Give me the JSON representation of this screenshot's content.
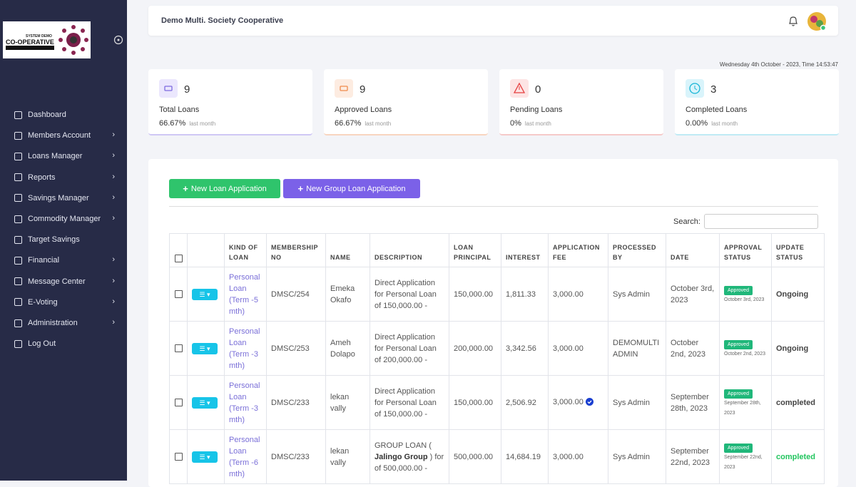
{
  "sidebar": {
    "logo": {
      "line1": "SYSTEM DEMO",
      "line2": "CO-OPERATIVE"
    },
    "menu": [
      {
        "label": "Dashboard",
        "submenu": false
      },
      {
        "label": "Members Account",
        "submenu": true
      },
      {
        "label": "Loans Manager",
        "submenu": true
      },
      {
        "label": "Reports",
        "submenu": true
      },
      {
        "label": "Savings Manager",
        "submenu": true
      },
      {
        "label": "Commodity Manager",
        "submenu": true
      },
      {
        "label": "Target Savings",
        "submenu": false
      },
      {
        "label": "Financial",
        "submenu": true
      },
      {
        "label": "Message Center",
        "submenu": true
      },
      {
        "label": "E-Voting",
        "submenu": true
      },
      {
        "label": "Administration",
        "submenu": true
      },
      {
        "label": "Log Out",
        "submenu": false
      }
    ]
  },
  "header": {
    "title": "Demo Multi. Society Cooperative"
  },
  "datetime": "Wednesday 4th October - 2023,  Time  14:53:47",
  "cards": [
    {
      "value": "9",
      "label": "Total Loans",
      "percent": "66.67%",
      "period": "last month"
    },
    {
      "value": "9",
      "label": "Approved Loans",
      "percent": "66.67%",
      "period": "last month"
    },
    {
      "value": "0",
      "label": "Pending Loans",
      "percent": "0%",
      "period": "last month"
    },
    {
      "value": "3",
      "label": "Completed Loans",
      "percent": "0.00%",
      "period": "last month"
    }
  ],
  "buttons": [
    "New Loan Application",
    "New Group Loan Application"
  ],
  "search_label": "Search:",
  "table": {
    "columns": [
      "KIND OF LOAN",
      "MEMBERSHIP NO",
      "NAME",
      "DESCRIPTION",
      "LOAN PRINCIPAL",
      "INTEREST",
      "APPLICATION FEE",
      "PROCESSED BY",
      "DATE",
      "APPROVAL STATUS",
      "UPDATE STATUS"
    ],
    "rows": [
      {
        "kind": "Personal Loan (Term -5 mth)",
        "membership": "DMSC/254",
        "name": "Emeka Okafo",
        "description": [
          "Direct Application for Personal Loan of 150,000.00 -"
        ],
        "principal": "150,000.00",
        "interest": "1,811.33",
        "fee": "3,000.00",
        "verified": false,
        "processed_by": "Sys Admin",
        "date": "October 3rd, 2023",
        "approval": "Approved",
        "approval_date": "October 3rd, 2023",
        "update_status": "Ongoing",
        "update_color": "#444444"
      },
      {
        "kind": "Personal Loan (Term -3 mth)",
        "membership": "DMSC/253",
        "name": "Ameh Dolapo",
        "description": [
          "Direct Application for Personal Loan of 200,000.00 -"
        ],
        "principal": "200,000.00",
        "interest": "3,342.56",
        "fee": "3,000.00",
        "verified": false,
        "processed_by": "DEMOMULTI ADMIN",
        "date": "October 2nd, 2023",
        "approval": "Approved",
        "approval_date": "October 2nd, 2023",
        "update_status": "Ongoing",
        "update_color": "#444444"
      },
      {
        "kind": "Personal Loan (Term -3 mth)",
        "membership": "DMSC/233",
        "name": "lekan vally",
        "description": [
          "Direct Application for Personal Loan of 150,000.00 -"
        ],
        "principal": "150,000.00",
        "interest": "2,506.92",
        "fee": "3,000.00",
        "verified": true,
        "processed_by": "Sys Admin",
        "date": "September 28th, 2023",
        "approval": "Approved",
        "approval_date": "September 28th, 2023",
        "update_status": "completed",
        "update_color": "#444444"
      },
      {
        "kind": "Personal Loan (Term -6 mth)",
        "membership": "DMSC/233",
        "name": "lekan vally",
        "description": [
          "GROUP LOAN ( ",
          "Jalingo Group",
          " ) for of 500,000.00 -"
        ],
        "principal": "500,000.00",
        "interest": "14,684.19",
        "fee": "3,000.00",
        "verified": false,
        "processed_by": "Sys Admin",
        "date": "September 22nd, 2023",
        "approval": "Approved",
        "approval_date": "September 22nd, 2023",
        "update_status": "completed",
        "update_color": "#22c55e"
      }
    ]
  }
}
